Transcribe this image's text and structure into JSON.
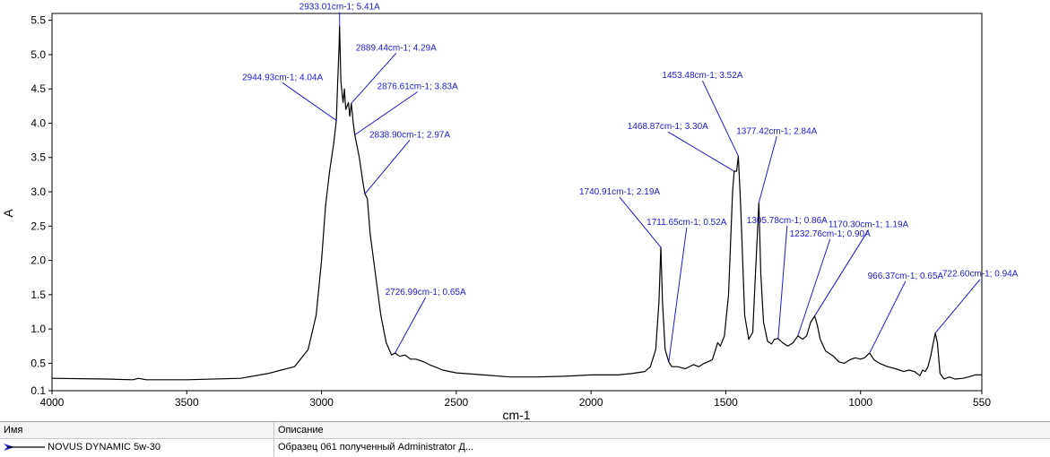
{
  "chart_data": {
    "type": "line",
    "xlabel": "cm-1",
    "ylabel": "A",
    "xlim": [
      4000,
      550
    ],
    "ylim": [
      0.1,
      5.6
    ],
    "x_ticks": [
      4000,
      3500,
      3000,
      2500,
      2000,
      1500,
      1000,
      550
    ],
    "x_tick_labels": [
      "4000",
      "3500",
      "3000",
      "2500",
      "2000",
      "1500",
      "1000",
      "550"
    ],
    "y_ticks": [
      0.1,
      0.5,
      1.0,
      1.5,
      2.0,
      2.5,
      3.0,
      3.5,
      4.0,
      4.5,
      5.0,
      5.5
    ],
    "y_tick_labels": [
      "0.1",
      "0.5",
      "1.0",
      "1.5",
      "2.0",
      "2.5",
      "3.0",
      "3.5",
      "4.0",
      "4.5",
      "5.0",
      "5.5"
    ],
    "series": [
      {
        "name": "NOVUS DYNAMIC 5w-30",
        "color": "#000000",
        "points": [
          [
            4000,
            0.28
          ],
          [
            3800,
            0.27
          ],
          [
            3700,
            0.26
          ],
          [
            3680,
            0.28
          ],
          [
            3650,
            0.26
          ],
          [
            3500,
            0.26
          ],
          [
            3300,
            0.28
          ],
          [
            3200,
            0.35
          ],
          [
            3150,
            0.4
          ],
          [
            3100,
            0.45
          ],
          [
            3050,
            0.7
          ],
          [
            3020,
            1.2
          ],
          [
            3000,
            2.0
          ],
          [
            2985,
            2.8
          ],
          [
            2970,
            3.3
          ],
          [
            2955,
            3.7
          ],
          [
            2944.93,
            4.04
          ],
          [
            2940,
            4.6
          ],
          [
            2935,
            5.1
          ],
          [
            2933.01,
            5.41
          ],
          [
            2928,
            4.6
          ],
          [
            2920,
            4.3
          ],
          [
            2915,
            4.5
          ],
          [
            2910,
            4.2
          ],
          [
            2900,
            4.3
          ],
          [
            2895,
            4.1
          ],
          [
            2889.44,
            4.29
          ],
          [
            2882,
            4.0
          ],
          [
            2876.61,
            3.83
          ],
          [
            2860,
            3.5
          ],
          [
            2845,
            3.1
          ],
          [
            2838.9,
            2.97
          ],
          [
            2830,
            2.9
          ],
          [
            2820,
            2.4
          ],
          [
            2800,
            1.8
          ],
          [
            2780,
            1.2
          ],
          [
            2760,
            0.8
          ],
          [
            2740,
            0.62
          ],
          [
            2726.99,
            0.65
          ],
          [
            2710,
            0.6
          ],
          [
            2690,
            0.62
          ],
          [
            2670,
            0.56
          ],
          [
            2650,
            0.56
          ],
          [
            2620,
            0.52
          ],
          [
            2600,
            0.48
          ],
          [
            2550,
            0.4
          ],
          [
            2500,
            0.36
          ],
          [
            2400,
            0.33
          ],
          [
            2300,
            0.3
          ],
          [
            2200,
            0.3
          ],
          [
            2100,
            0.31
          ],
          [
            2000,
            0.33
          ],
          [
            1900,
            0.33
          ],
          [
            1850,
            0.35
          ],
          [
            1800,
            0.38
          ],
          [
            1780,
            0.45
          ],
          [
            1760,
            0.7
          ],
          [
            1748,
            1.4
          ],
          [
            1740.91,
            2.19
          ],
          [
            1735,
            1.4
          ],
          [
            1725,
            0.7
          ],
          [
            1711.65,
            0.52
          ],
          [
            1700,
            0.45
          ],
          [
            1680,
            0.45
          ],
          [
            1650,
            0.42
          ],
          [
            1620,
            0.48
          ],
          [
            1600,
            0.45
          ],
          [
            1580,
            0.5
          ],
          [
            1550,
            0.55
          ],
          [
            1530,
            0.8
          ],
          [
            1520,
            0.75
          ],
          [
            1505,
            0.9
          ],
          [
            1490,
            1.5
          ],
          [
            1475,
            3.0
          ],
          [
            1468.87,
            3.3
          ],
          [
            1460,
            3.3
          ],
          [
            1453.48,
            3.52
          ],
          [
            1445,
            2.8
          ],
          [
            1430,
            1.2
          ],
          [
            1415,
            0.85
          ],
          [
            1400,
            0.95
          ],
          [
            1390,
            1.8
          ],
          [
            1377.42,
            2.84
          ],
          [
            1370,
            1.8
          ],
          [
            1360,
            1.1
          ],
          [
            1345,
            0.82
          ],
          [
            1330,
            0.78
          ],
          [
            1320,
            0.85
          ],
          [
            1305.78,
            0.86
          ],
          [
            1290,
            0.8
          ],
          [
            1270,
            0.75
          ],
          [
            1250,
            0.8
          ],
          [
            1232.76,
            0.9
          ],
          [
            1215,
            0.85
          ],
          [
            1200,
            0.9
          ],
          [
            1185,
            1.1
          ],
          [
            1170.3,
            1.19
          ],
          [
            1160,
            1.05
          ],
          [
            1150,
            0.85
          ],
          [
            1130,
            0.68
          ],
          [
            1100,
            0.6
          ],
          [
            1080,
            0.52
          ],
          [
            1060,
            0.5
          ],
          [
            1040,
            0.55
          ],
          [
            1020,
            0.58
          ],
          [
            1000,
            0.56
          ],
          [
            985,
            0.58
          ],
          [
            966.37,
            0.65
          ],
          [
            950,
            0.55
          ],
          [
            930,
            0.5
          ],
          [
            900,
            0.45
          ],
          [
            870,
            0.42
          ],
          [
            840,
            0.38
          ],
          [
            820,
            0.4
          ],
          [
            800,
            0.38
          ],
          [
            780,
            0.32
          ],
          [
            770,
            0.4
          ],
          [
            760,
            0.38
          ],
          [
            750,
            0.45
          ],
          [
            740,
            0.6
          ],
          [
            730,
            0.8
          ],
          [
            722.6,
            0.94
          ],
          [
            715,
            0.8
          ],
          [
            705,
            0.35
          ],
          [
            690,
            0.27
          ],
          [
            670,
            0.3
          ],
          [
            650,
            0.27
          ],
          [
            620,
            0.28
          ],
          [
            600,
            0.3
          ],
          [
            575,
            0.33
          ],
          [
            550,
            0.33
          ]
        ]
      }
    ],
    "annotations": [
      {
        "x": 2933.01,
        "y": 5.41,
        "text": "2933.01cm-1; 5.41A"
      },
      {
        "x": 2944.93,
        "y": 4.04,
        "text": "2944.93cm-1; 4.04A"
      },
      {
        "x": 2889.44,
        "y": 4.29,
        "text": "2889.44cm-1; 4.29A"
      },
      {
        "x": 2876.61,
        "y": 3.83,
        "text": "2876.61cm-1; 3.83A"
      },
      {
        "x": 2838.9,
        "y": 2.97,
        "text": "2838.90cm-1; 2.97A"
      },
      {
        "x": 2726.99,
        "y": 0.65,
        "text": "2726.99cm-1; 0.65A"
      },
      {
        "x": 1740.91,
        "y": 2.19,
        "text": "1740.91cm-1; 2.19A"
      },
      {
        "x": 1711.65,
        "y": 0.52,
        "text": "1711.65cm-1; 0.52A"
      },
      {
        "x": 1453.48,
        "y": 3.52,
        "text": "1453.48cm-1; 3.52A"
      },
      {
        "x": 1468.87,
        "y": 3.3,
        "text": "1468.87cm-1; 3.30A"
      },
      {
        "x": 1377.42,
        "y": 2.84,
        "text": "1377.42cm-1; 2.84A"
      },
      {
        "x": 1305.78,
        "y": 0.86,
        "text": "1305.78cm-1; 0.86A"
      },
      {
        "x": 1232.76,
        "y": 0.9,
        "text": "1232.76cm-1; 0.90A"
      },
      {
        "x": 1170.3,
        "y": 1.19,
        "text": "1170.30cm-1; 1.19A"
      },
      {
        "x": 966.37,
        "y": 0.65,
        "text": "966.37cm-1; 0.65A"
      },
      {
        "x": 722.6,
        "y": 0.94,
        "text": "722.60cm-1; 0.94A"
      }
    ],
    "grid": false,
    "annotation_color": "#1a1ad4"
  },
  "legend_table": {
    "col_name": "Имя",
    "col_desc": "Описание",
    "row": {
      "name": "NOVUS DYNAMIC 5w-30",
      "description": "Образец 061 полученный Administrator Д..."
    }
  }
}
